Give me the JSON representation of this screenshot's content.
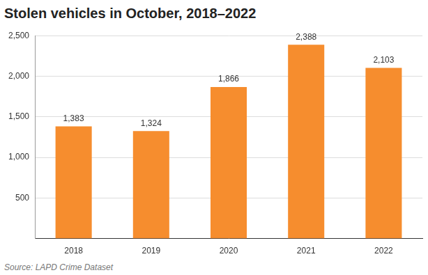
{
  "chart_data": {
    "type": "bar",
    "title": "Stolen vehicles in October, 2018–2022",
    "source": "Source: LAPD Crime Dataset",
    "categories": [
      "2018",
      "2019",
      "2020",
      "2021",
      "2022"
    ],
    "values": [
      1383,
      1324,
      1866,
      2388,
      2103
    ],
    "value_labels": [
      "1,383",
      "1,324",
      "1,866",
      "2,388",
      "2,103"
    ],
    "color": "#f68d2e",
    "ylim": [
      0,
      2500
    ],
    "yticks": [
      {
        "value": 500,
        "label": "500"
      },
      {
        "value": 1000,
        "label": "1,000"
      },
      {
        "value": 1500,
        "label": "1,500"
      },
      {
        "value": 2000,
        "label": "2,000"
      },
      {
        "value": 2500,
        "label": "2,500"
      }
    ],
    "grid": true,
    "data_labels": true
  }
}
